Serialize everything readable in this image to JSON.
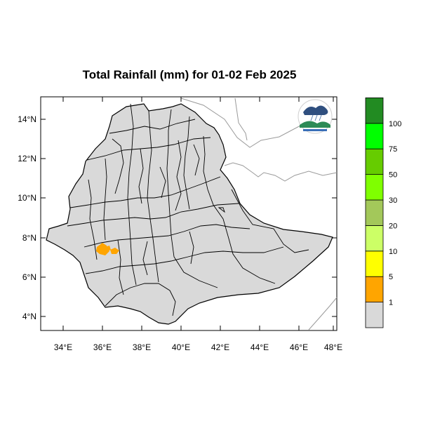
{
  "title": "Total Rainfall (mm) for 01-02 Feb 2025",
  "axes": {
    "lat_ticks": [
      "14°N",
      "12°N",
      "10°N",
      "8°N",
      "6°N",
      "4°N"
    ],
    "lon_ticks": [
      "34°E",
      "36°E",
      "38°E",
      "40°E",
      "42°E",
      "44°E",
      "46°E",
      "48°E"
    ],
    "lon_range": [
      33,
      48.2
    ],
    "lat_range": [
      3.2,
      15
    ]
  },
  "legend": {
    "bins": [
      {
        "color": "#d9d9d9",
        "label": "1"
      },
      {
        "color": "#ffa500",
        "label": "5"
      },
      {
        "color": "#ffff00",
        "label": "10"
      },
      {
        "color": "#ccff66",
        "label": "20"
      },
      {
        "color": "#a3c85a",
        "label": "30"
      },
      {
        "color": "#7fff00",
        "label": "50"
      },
      {
        "color": "#66cc00",
        "label": "75"
      },
      {
        "color": "#00ff00",
        "label": "100"
      },
      {
        "color": "#228b22",
        "label": ""
      }
    ]
  },
  "rainfall_areas": [
    {
      "class": "1-5 mm",
      "color": "#ffa500",
      "center_lon": 36.05,
      "center_lat": 7.45
    },
    {
      "class": "1-5 mm",
      "color": "#ffa500",
      "center_lon": 36.65,
      "center_lat": 7.3
    }
  ],
  "logo": {
    "icon": "meteorology-agency-logo"
  }
}
